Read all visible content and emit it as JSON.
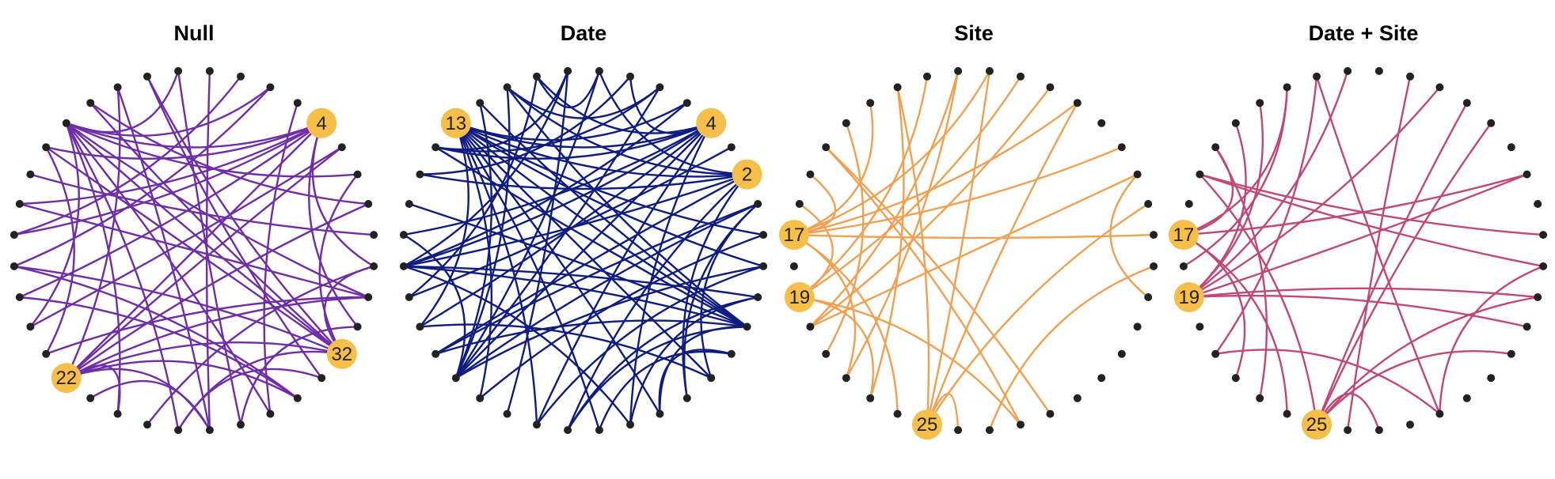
{
  "colors": {
    "node": "#222222",
    "hub": "#f5bf4a",
    "hub_text": "#222222"
  },
  "network": {
    "node_count": 36,
    "angle_step_degrees": 10,
    "first_node_angle_degrees": 5
  },
  "panels": [
    {
      "title": "Null",
      "edge_color": "#6f2da8",
      "hubs": [
        {
          "node": 4,
          "label": "4"
        },
        {
          "node": 22,
          "label": "22"
        },
        {
          "node": 32,
          "label": "32"
        }
      ],
      "edges": [
        [
          13,
          4
        ],
        [
          13,
          6
        ],
        [
          13,
          34
        ],
        [
          13,
          32
        ],
        [
          13,
          29
        ],
        [
          13,
          26
        ],
        [
          13,
          24
        ],
        [
          13,
          9
        ],
        [
          13,
          2
        ],
        [
          13,
          20
        ],
        [
          4,
          17
        ],
        [
          4,
          19
        ],
        [
          4,
          22
        ],
        [
          4,
          14
        ],
        [
          4,
          16
        ],
        [
          4,
          33
        ],
        [
          4,
          35
        ],
        [
          22,
          3
        ],
        [
          22,
          1
        ],
        [
          22,
          34
        ],
        [
          22,
          32
        ],
        [
          22,
          30
        ],
        [
          22,
          27
        ],
        [
          22,
          24
        ],
        [
          22,
          11
        ],
        [
          32,
          10
        ],
        [
          32,
          12
        ],
        [
          32,
          14
        ],
        [
          32,
          18
        ],
        [
          32,
          26
        ],
        [
          32,
          2
        ],
        [
          32,
          35
        ],
        [
          18,
          6
        ],
        [
          18,
          30
        ],
        [
          20,
          3
        ],
        [
          15,
          0
        ],
        [
          11,
          27
        ],
        [
          9,
          28
        ],
        [
          8,
          27
        ],
        [
          12,
          1
        ],
        [
          16,
          34
        ],
        [
          19,
          30
        ],
        [
          21,
          34
        ],
        [
          25,
          35
        ],
        [
          26,
          31
        ],
        [
          28,
          33
        ],
        [
          23,
          27
        ],
        [
          17,
          7
        ],
        [
          10,
          31
        ],
        [
          14,
          21
        ],
        [
          5,
          29
        ]
      ]
    },
    {
      "title": "Date",
      "edge_color": "#0f1c80",
      "hubs": [
        {
          "node": 13,
          "label": "13"
        },
        {
          "node": 4,
          "label": "4"
        },
        {
          "node": 2,
          "label": "2"
        }
      ],
      "edges": [
        [
          13,
          4
        ],
        [
          13,
          2
        ],
        [
          13,
          5
        ],
        [
          13,
          0
        ],
        [
          13,
          33
        ],
        [
          13,
          31
        ],
        [
          13,
          29
        ],
        [
          13,
          25
        ],
        [
          13,
          27
        ],
        [
          13,
          23
        ],
        [
          13,
          20
        ],
        [
          13,
          35
        ],
        [
          4,
          18
        ],
        [
          4,
          20
        ],
        [
          4,
          22
        ],
        [
          4,
          17
        ],
        [
          4,
          10
        ],
        [
          4,
          14
        ],
        [
          4,
          7
        ],
        [
          4,
          25
        ],
        [
          4,
          28
        ],
        [
          2,
          18
        ],
        [
          2,
          21
        ],
        [
          2,
          11
        ],
        [
          2,
          15
        ],
        [
          2,
          8
        ],
        [
          2,
          26
        ],
        [
          2,
          30
        ],
        [
          33,
          18
        ],
        [
          33,
          16
        ],
        [
          33,
          21
        ],
        [
          33,
          12
        ],
        [
          33,
          11
        ],
        [
          33,
          14
        ],
        [
          33,
          26
        ],
        [
          33,
          29
        ],
        [
          22,
          6
        ],
        [
          22,
          8
        ],
        [
          22,
          11
        ],
        [
          22,
          12
        ],
        [
          22,
          17
        ],
        [
          22,
          1
        ],
        [
          22,
          35
        ],
        [
          18,
          9
        ],
        [
          18,
          28
        ],
        [
          18,
          5
        ],
        [
          18,
          34
        ],
        [
          19,
          10
        ],
        [
          19,
          3
        ],
        [
          20,
          31
        ],
        [
          21,
          1
        ],
        [
          24,
          9
        ],
        [
          23,
          0
        ],
        [
          25,
          35
        ],
        [
          26,
          34
        ],
        [
          27,
          32
        ],
        [
          28,
          34
        ],
        [
          29,
          32
        ],
        [
          30,
          1
        ],
        [
          31,
          1
        ],
        [
          9,
          14
        ],
        [
          10,
          8
        ],
        [
          11,
          6
        ],
        [
          7,
          15
        ],
        [
          6,
          14
        ]
      ]
    },
    {
      "title": "Site",
      "edge_color": "#f0a050",
      "hubs": [
        {
          "node": 17,
          "label": "17"
        },
        {
          "node": 19,
          "label": "19"
        },
        {
          "node": 25,
          "label": "25"
        }
      ],
      "edges": [
        [
          17,
          12
        ],
        [
          17,
          0
        ],
        [
          17,
          3
        ],
        [
          17,
          5
        ],
        [
          17,
          8
        ],
        [
          17,
          22
        ],
        [
          17,
          24
        ],
        [
          17,
          15
        ],
        [
          19,
          10
        ],
        [
          19,
          7
        ],
        [
          19,
          23
        ],
        [
          19,
          28
        ],
        [
          19,
          16
        ],
        [
          25,
          5
        ],
        [
          25,
          1
        ],
        [
          25,
          8
        ],
        [
          25,
          11
        ],
        [
          25,
          26
        ],
        [
          20,
          2
        ],
        [
          20,
          6
        ],
        [
          20,
          9
        ],
        [
          21,
          13
        ],
        [
          22,
          9
        ],
        [
          14,
          28
        ],
        [
          23,
          11
        ],
        [
          27,
          35
        ],
        [
          29,
          14
        ],
        [
          34,
          2
        ]
      ]
    },
    {
      "title": "Date + Site",
      "edge_color": "#c04878",
      "hubs": [
        {
          "node": 17,
          "label": "17"
        },
        {
          "node": 19,
          "label": "19"
        },
        {
          "node": 25,
          "label": "25"
        }
      ],
      "edges": [
        [
          17,
          22
        ],
        [
          17,
          24
        ],
        [
          17,
          2
        ],
        [
          17,
          11
        ],
        [
          17,
          14
        ],
        [
          19,
          2
        ],
        [
          19,
          6
        ],
        [
          19,
          9
        ],
        [
          19,
          12
        ],
        [
          19,
          13
        ],
        [
          19,
          33
        ],
        [
          19,
          34
        ],
        [
          25,
          15
        ],
        [
          25,
          34
        ],
        [
          25,
          32
        ],
        [
          25,
          4
        ],
        [
          25,
          5
        ],
        [
          25,
          27
        ],
        [
          15,
          0
        ],
        [
          15,
          35
        ],
        [
          18,
          11
        ],
        [
          21,
          29
        ],
        [
          23,
          14
        ],
        [
          26,
          7
        ],
        [
          29,
          10
        ],
        [
          35,
          29
        ],
        [
          21,
          10
        ]
      ]
    }
  ]
}
